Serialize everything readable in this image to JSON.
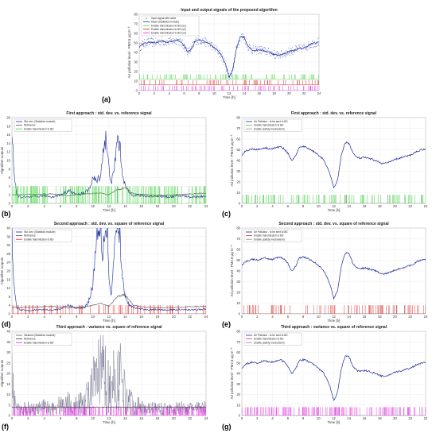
{
  "chart_data": [
    {
      "id": "a",
      "panel_label": "(a)",
      "type": "line",
      "title": "Input and output signals of the proposed algorithm",
      "xlabel": "Time [h]",
      "ylabel": "Air pollution level - PM2.5 µg m⁻³",
      "xlim": [
        0,
        24
      ],
      "ylim": [
        0,
        80
      ],
      "xticks": [
        "0",
        "2",
        "4",
        "6",
        "8",
        "10",
        "12",
        "14",
        "16",
        "18",
        "20",
        "22",
        "24"
      ],
      "yticks": [
        "0",
        "10",
        "20",
        "30",
        "40",
        "50",
        "60",
        "70",
        "80"
      ],
      "legend_placement": "top-left",
      "series": [
        {
          "name": "Input signal with noise",
          "color": "#5060c0",
          "style": "dots"
        },
        {
          "name": "Mean (Statistics module)",
          "color": "#1a2a9a",
          "style": "line"
        },
        {
          "name": "Enable transmission to BS (s1)",
          "color": "#40d040",
          "style": "pulse",
          "base": 12,
          "amp": 5,
          "density": 0.3
        },
        {
          "name": "Enable transmission to BS (s2)",
          "color": "#e02020",
          "style": "pulse",
          "base": 6,
          "amp": 5,
          "density": 0.25
        },
        {
          "name": "Enable transmission to BS (s3)",
          "color": "#e020e0",
          "style": "pulse",
          "base": 0,
          "amp": 5,
          "density": 0.3
        }
      ],
      "curve_x": [
        0,
        0.5,
        1,
        1.5,
        2,
        2.5,
        3,
        3.5,
        4,
        4.5,
        5,
        5.5,
        6,
        6.5,
        7,
        7.5,
        8,
        8.5,
        9,
        9.5,
        10,
        10.5,
        11,
        11.5,
        12,
        12.5,
        13,
        13.5,
        14,
        14.5,
        15,
        15.5,
        16,
        16.5,
        17,
        17.5,
        18,
        18.5,
        19,
        19.5,
        20,
        20.5,
        21,
        21.5,
        22,
        22.5,
        23,
        23.5,
        24
      ],
      "curve_y": [
        45,
        49,
        50,
        51,
        50,
        51,
        52,
        51,
        51,
        52,
        53,
        51,
        47,
        40,
        44,
        52,
        53,
        52,
        50,
        48,
        45,
        42,
        36,
        28,
        14,
        22,
        45,
        57,
        56,
        47,
        43,
        42,
        43,
        42,
        41,
        40,
        38,
        37,
        38,
        39,
        41,
        42,
        43,
        44,
        45,
        47,
        49,
        50,
        51
      ]
    },
    {
      "id": "b",
      "panel_label": "(b)",
      "type": "line",
      "title": "First approach : std. dev. vs. reference signal",
      "xlabel": "Time [h]",
      "ylabel": "Algorithm outputs",
      "xlim": [
        0,
        24
      ],
      "ylim": [
        0,
        20
      ],
      "xticks": [
        "0",
        "2",
        "4",
        "6",
        "8",
        "10",
        "12",
        "14",
        "16",
        "18",
        "20",
        "22",
        "24"
      ],
      "yticks": [
        "0",
        "2",
        "4",
        "6",
        "8",
        "10",
        "12",
        "14",
        "16",
        "18",
        "20"
      ],
      "legend_placement": "top-left",
      "series": [
        {
          "name": "Std. dev. (Statistics module)",
          "color": "#1a2a9a",
          "style": "line",
          "x": [
            0,
            0.3,
            0.6,
            1,
            2,
            3,
            4,
            5,
            6,
            7,
            8,
            9,
            9.5,
            10,
            10.5,
            11,
            11.3,
            11.6,
            12,
            12.3,
            12.6,
            13,
            13.3,
            13.6,
            14,
            14.5,
            15,
            16,
            17,
            18,
            19,
            20,
            21,
            22,
            23,
            24
          ],
          "y": [
            18,
            6,
            2,
            1.5,
            1.4,
            1.6,
            1.8,
            1.5,
            2,
            3,
            2,
            2.5,
            3,
            6,
            5,
            7,
            13,
            15,
            8,
            5,
            7,
            15,
            14,
            8,
            4,
            2.5,
            2,
            1.8,
            1.6,
            1.8,
            1.5,
            1.6,
            1.8,
            1.5,
            1.6,
            1.7
          ]
        },
        {
          "name": "Reference",
          "color": "#555555",
          "style": "line",
          "x": [
            0,
            1,
            2,
            3,
            4,
            5,
            6,
            7,
            8,
            9,
            10,
            11,
            12,
            13,
            14,
            15,
            16,
            17,
            18,
            19,
            20,
            21,
            22,
            23,
            24
          ],
          "y": [
            2,
            2,
            2.1,
            2.1,
            2.2,
            2.2,
            2.0,
            1.8,
            2.1,
            2.2,
            2.3,
            2.4,
            2.0,
            3.2,
            3.6,
            2.3,
            2.1,
            2.0,
            1.9,
            1.9,
            2.0,
            2.1,
            2.2,
            2.3,
            2.4
          ]
        },
        {
          "name": "Enable transmission to BS",
          "color": "#30d030",
          "style": "pulse",
          "base": 0,
          "amp": 4,
          "density": 0.55
        }
      ]
    },
    {
      "id": "c",
      "panel_label": "(c)",
      "type": "line",
      "title": "First approach : std. dev. vs. reference signal",
      "xlabel": "Time [h]",
      "ylabel": "Air pollution level - PM2.5 µg m⁻³",
      "xlim": [
        0,
        24
      ],
      "ylim": [
        0,
        80
      ],
      "xticks": [
        "0",
        "2",
        "4",
        "6",
        "8",
        "10",
        "12",
        "14",
        "16",
        "18",
        "20",
        "22",
        "24"
      ],
      "yticks": [
        "0",
        "10",
        "20",
        "30",
        "40",
        "50",
        "60",
        "70",
        "80"
      ],
      "legend_placement": "top-left",
      "series": [
        {
          "name": "Air Pollution - to be sent to BS",
          "color": "#1a2a9a",
          "style": "curve"
        },
        {
          "name": "Enable transmission to BS",
          "color": "#30d030",
          "style": "pulse",
          "base": 0,
          "amp": 8,
          "density": 0.35
        },
        {
          "name": "Enable (safety mechanism)",
          "color": "#888888",
          "style": "pulse",
          "base": 0,
          "amp": 8,
          "density": 0.04
        }
      ]
    },
    {
      "id": "d",
      "panel_label": "(d)",
      "type": "line",
      "title": "Second approach : std. dev. vs. square of reference signal",
      "xlabel": "Time [h]",
      "ylabel": "Algorithm outputs",
      "xlim": [
        0,
        24
      ],
      "ylim": [
        0,
        40
      ],
      "xticks": [
        "0",
        "2",
        "4",
        "6",
        "8",
        "10",
        "12",
        "14",
        "16",
        "18",
        "20",
        "22",
        "24"
      ],
      "yticks": [
        "0",
        "4",
        "8",
        "12",
        "16",
        "20",
        "24",
        "28",
        "32",
        "36",
        "40"
      ],
      "legend_placement": "top-left",
      "series": [
        {
          "name": "Std. dev. (Statistics module)",
          "color": "#1a2a9a",
          "style": "line",
          "x": [
            0,
            0.3,
            0.6,
            1,
            2,
            3,
            4,
            5,
            6,
            7,
            8,
            9,
            9.5,
            10,
            10.3,
            10.6,
            11,
            11.2,
            11.5,
            11.8,
            12,
            12.3,
            12.6,
            13,
            13.3,
            13.6,
            14,
            14.5,
            15,
            16,
            17,
            18,
            19,
            20,
            21,
            22,
            23,
            24
          ],
          "y": [
            38,
            10,
            3,
            2,
            1.6,
            1.8,
            2,
            1.7,
            2.4,
            4,
            2.5,
            3,
            6,
            14,
            28,
            40,
            40,
            28,
            40,
            40,
            16,
            8,
            26,
            40,
            40,
            18,
            8,
            4,
            3,
            2.2,
            1.9,
            2,
            1.8,
            1.9,
            2.1,
            1.8,
            2,
            2.1
          ]
        },
        {
          "name": "Reference",
          "color": "#555555",
          "style": "line",
          "x": [
            0,
            1,
            2,
            3,
            4,
            5,
            6,
            7,
            8,
            9,
            10,
            11,
            12,
            13,
            14,
            15,
            16,
            17,
            18,
            19,
            20,
            21,
            22,
            23,
            24
          ],
          "y": [
            3,
            3,
            3.1,
            3.2,
            3.3,
            3.4,
            3.1,
            2.8,
            3.2,
            3.4,
            4,
            5,
            3.5,
            8,
            9,
            4,
            3.3,
            3.0,
            2.9,
            2.9,
            3.0,
            3.1,
            3.3,
            3.4,
            3.5
          ]
        },
        {
          "name": "Enable transmission to BS",
          "color": "#e02020",
          "style": "pulse",
          "base": 0,
          "amp": 4,
          "density": 0.3
        }
      ]
    },
    {
      "id": "e",
      "panel_label": "(e)",
      "type": "line",
      "title": "Second approach : std. dev. vs. square of reference signal",
      "xlabel": "Time [h]",
      "ylabel": "Air pollution level - PM2.5 µg m⁻³",
      "xlim": [
        0,
        24
      ],
      "ylim": [
        0,
        80
      ],
      "xticks": [
        "0",
        "2",
        "4",
        "6",
        "8",
        "10",
        "12",
        "14",
        "16",
        "18",
        "20",
        "22",
        "24"
      ],
      "yticks": [
        "0",
        "10",
        "20",
        "30",
        "40",
        "50",
        "60",
        "70",
        "80"
      ],
      "legend_placement": "top-left",
      "series": [
        {
          "name": "Air Pollution - to be sent to BS",
          "color": "#1a2a9a",
          "style": "curve"
        },
        {
          "name": "Enable transmission to BS",
          "color": "#e02020",
          "style": "pulse",
          "base": 0,
          "amp": 8,
          "density": 0.3
        },
        {
          "name": "Enable (safety mechanism)",
          "color": "#888888",
          "style": "pulse",
          "base": 0,
          "amp": 8,
          "density": 0.04
        }
      ]
    },
    {
      "id": "f",
      "panel_label": "(f)",
      "type": "line",
      "title": "Third approach : variance vs. square of reference signal",
      "xlabel": "Time [h]",
      "ylabel": "Algorithm outputs",
      "xlim": [
        0,
        24
      ],
      "ylim": [
        0,
        40
      ],
      "xticks": [
        "0",
        "2",
        "4",
        "6",
        "8",
        "10",
        "12",
        "14",
        "16",
        "18",
        "20",
        "22",
        "24"
      ],
      "yticks": [
        "0",
        "5",
        "10",
        "15",
        "20",
        "25",
        "30",
        "35",
        "40"
      ],
      "legend_placement": "top-left",
      "series": [
        {
          "name": "Variance (Statistics module)",
          "color": "#555577",
          "style": "noise",
          "x": [
            0,
            0.3,
            0.6,
            1,
            2,
            3,
            4,
            5,
            6,
            7,
            8,
            9,
            9.5,
            10,
            10.5,
            11,
            11.5,
            12,
            12.5,
            13,
            13.5,
            14,
            15,
            16,
            17,
            18,
            19,
            20,
            21,
            22,
            23,
            24
          ],
          "y": [
            30,
            12,
            6,
            6,
            7,
            6,
            8,
            7,
            10,
            12,
            9,
            14,
            20,
            26,
            35,
            40,
            38,
            24,
            30,
            40,
            36,
            20,
            10,
            8,
            7,
            7,
            6,
            6,
            7,
            6,
            7,
            7
          ]
        },
        {
          "name": "Reference",
          "color": "#333333",
          "style": "line",
          "x": [
            0,
            24
          ],
          "y": [
            4,
            4
          ]
        },
        {
          "name": "Enable transmission to BS",
          "color": "#e020e0",
          "style": "pulse",
          "base": 0,
          "amp": 4,
          "density": 0.6
        }
      ]
    },
    {
      "id": "g",
      "panel_label": "(g)",
      "type": "line",
      "title": "Third approach : variance vs. square of reference signal",
      "xlabel": "Time [h]",
      "ylabel": "Air pollution level - PM2.5 µg m⁻³",
      "xlim": [
        0,
        24
      ],
      "ylim": [
        0,
        80
      ],
      "xticks": [
        "0",
        "2",
        "4",
        "6",
        "8",
        "10",
        "12",
        "14",
        "16",
        "18",
        "20",
        "22",
        "24"
      ],
      "yticks": [
        "0",
        "10",
        "20",
        "30",
        "40",
        "50",
        "60",
        "70",
        "80"
      ],
      "legend_placement": "top-left",
      "series": [
        {
          "name": "Air Pollution - to be sent to BS",
          "color": "#1a2a9a",
          "style": "curve"
        },
        {
          "name": "Enable transmission to BS",
          "color": "#e020e0",
          "style": "pulse",
          "base": 0,
          "amp": 8,
          "density": 0.5
        },
        {
          "name": "Enable (safety mechanism)",
          "color": "#888888",
          "style": "pulse",
          "base": 0,
          "amp": 8,
          "density": 0.04
        }
      ]
    }
  ]
}
